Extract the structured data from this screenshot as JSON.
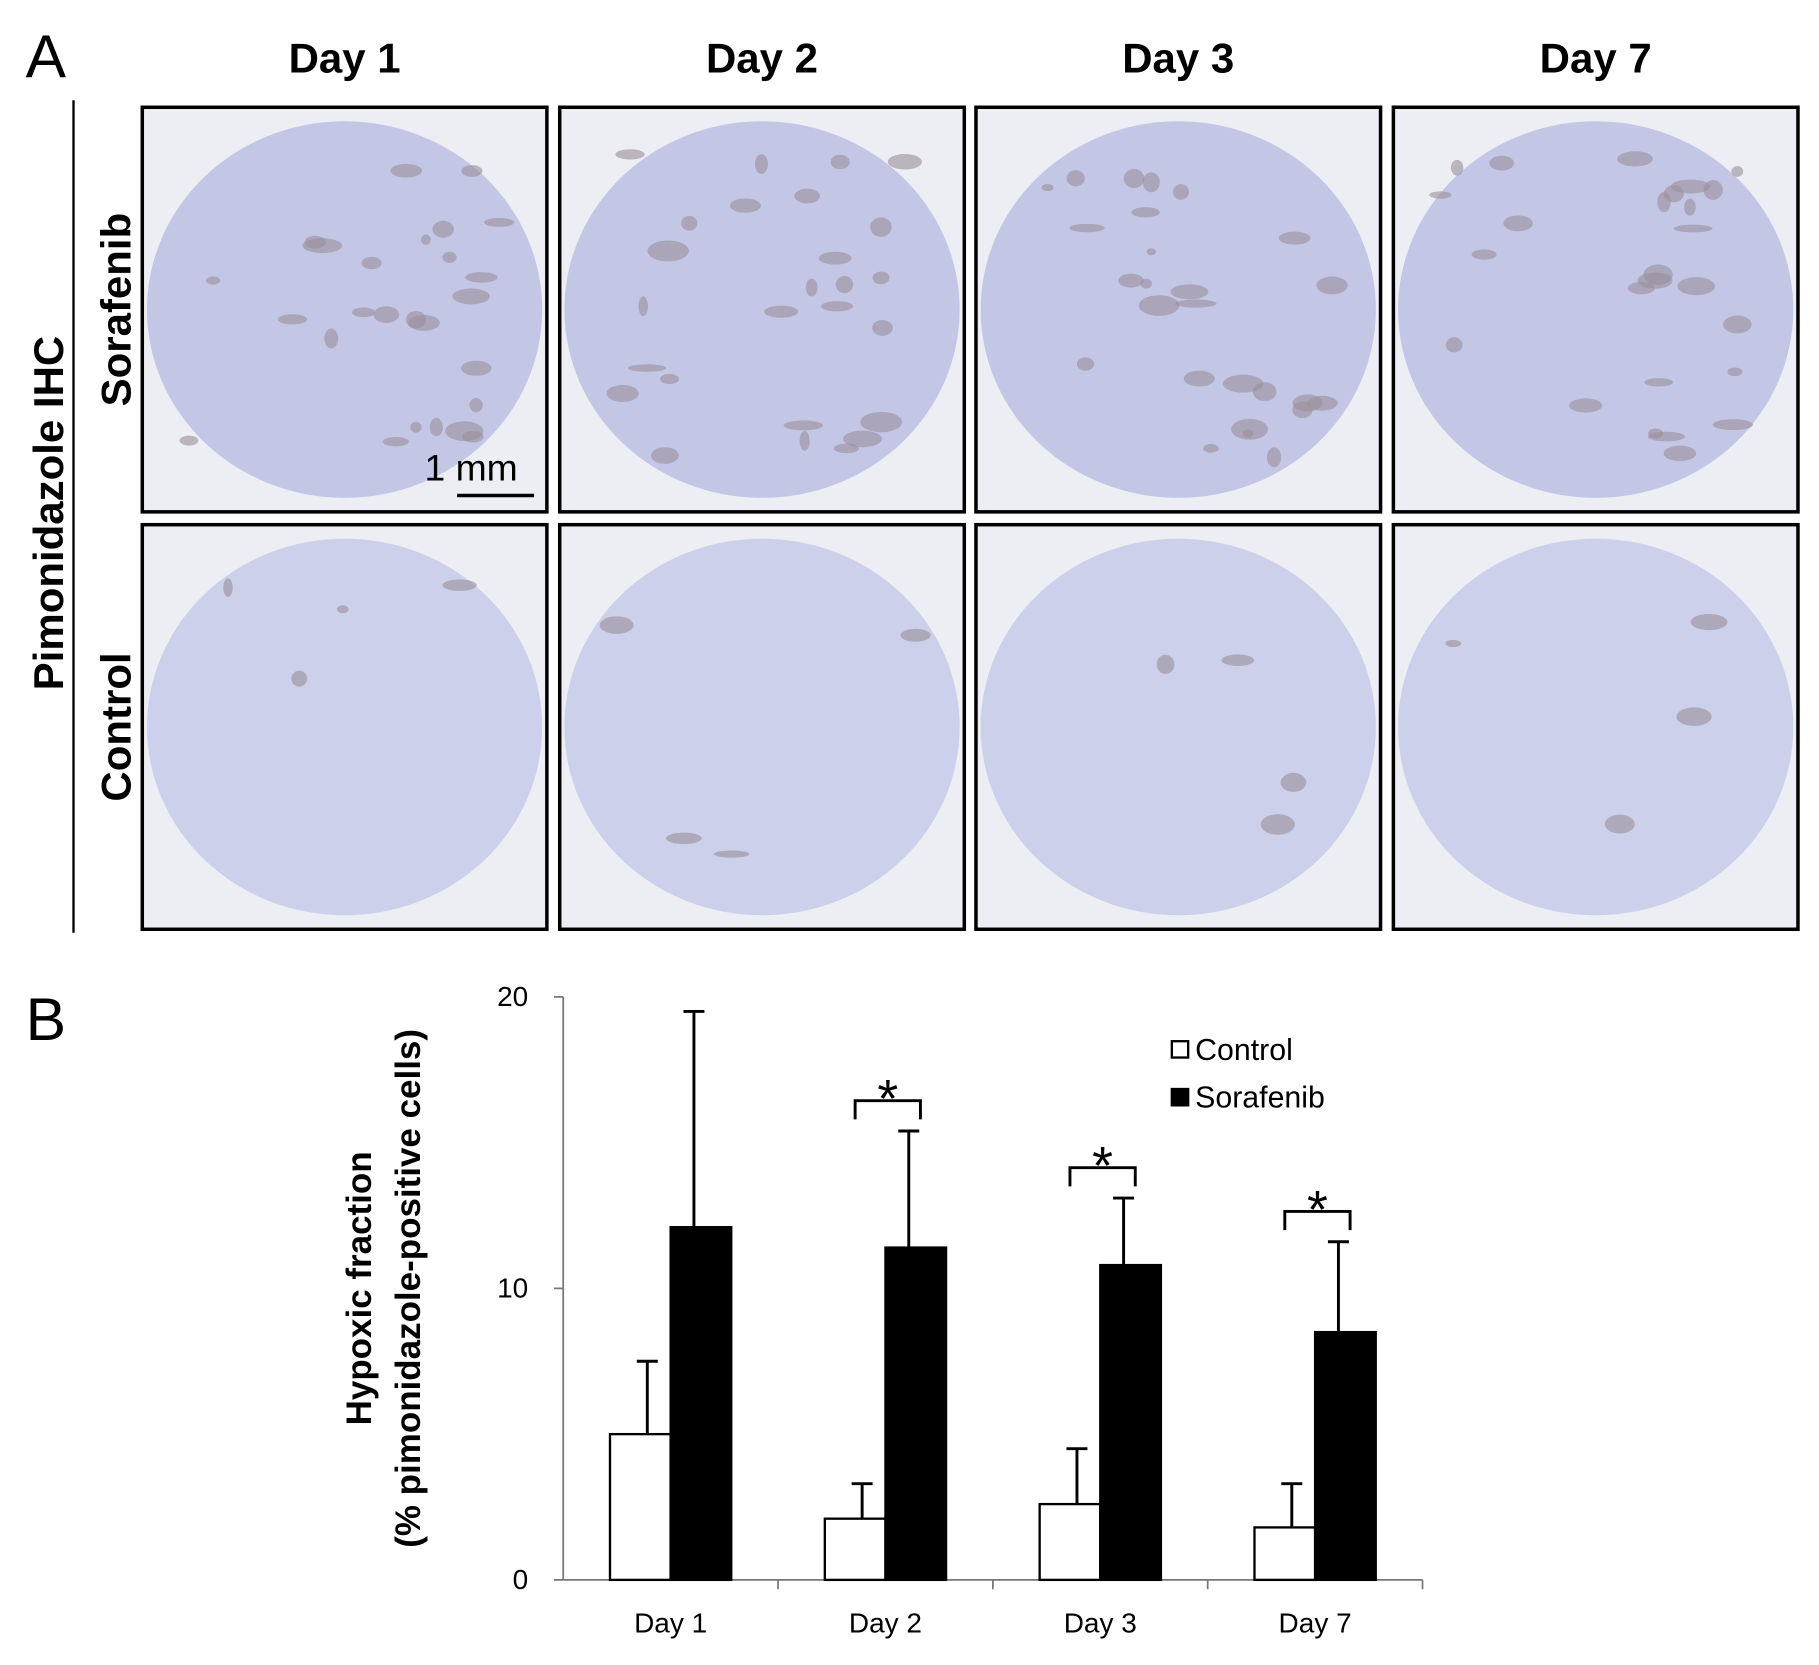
{
  "panel_a": {
    "label": "A",
    "columns": [
      "Day 1",
      "Day 2",
      "Day 3",
      "Day 7"
    ],
    "row_group": "Pimonidazole IHC",
    "rows": [
      "Sorafenib",
      "Control"
    ],
    "scale_bar": "1 mm"
  },
  "chart_data": {
    "type": "bar",
    "panel_label": "B",
    "y_label": [
      "Hypoxic fraction",
      "(% pimonidazole-positive cells)"
    ],
    "categories": [
      "Day 1",
      "Day 2",
      "Day 3",
      "Day 7"
    ],
    "series": [
      {
        "name": "Control",
        "color": "#ffffff",
        "values": [
          5.0,
          2.1,
          2.6,
          1.8
        ],
        "errors": [
          2.5,
          1.2,
          1.9,
          1.5
        ]
      },
      {
        "name": "Sorafenib",
        "color": "#000000",
        "values": [
          12.1,
          11.4,
          10.8,
          8.5
        ],
        "errors": [
          7.4,
          4.0,
          2.3,
          3.1
        ]
      }
    ],
    "significance": [
      null,
      "*",
      "*",
      "*"
    ],
    "ylim": [
      0,
      20
    ],
    "yticks": [
      0,
      10,
      20
    ]
  }
}
